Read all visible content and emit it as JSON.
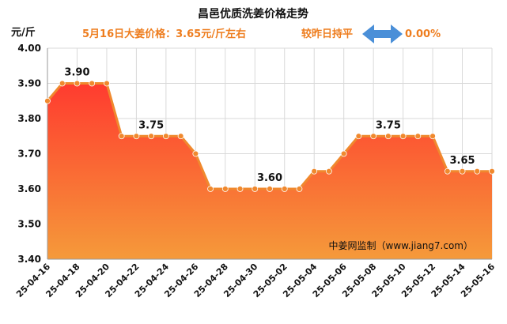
{
  "chart_data": {
    "type": "area",
    "title": "昌邑优质洗姜价格走势",
    "subtitle": "5月16日大姜价格：3.65元/斤左右",
    "change_label": "较昨日持平",
    "change_value": "0.00%",
    "ylabel": "元/斤",
    "watermark": "中姜网监制（www.jiang7.com）",
    "ylim": [
      3.4,
      4.0
    ],
    "yticks": [
      "3.40",
      "3.50",
      "3.60",
      "3.70",
      "3.80",
      "3.90",
      "4.00"
    ],
    "x": [
      "25-04-16",
      "25-04-17",
      "25-04-18",
      "25-04-19",
      "25-04-20",
      "25-04-21",
      "25-04-22",
      "25-04-23",
      "25-04-24",
      "25-04-25",
      "25-04-26",
      "25-04-27",
      "25-04-28",
      "25-04-29",
      "25-04-30",
      "25-05-01",
      "25-05-02",
      "25-05-03",
      "25-05-04",
      "25-05-05",
      "25-05-06",
      "25-05-07",
      "25-05-08",
      "25-05-09",
      "25-05-10",
      "25-05-11",
      "25-05-12",
      "25-05-13",
      "25-05-14",
      "25-05-15",
      "25-05-16"
    ],
    "xtick_labels": [
      "25-04-16",
      "25-04-18",
      "25-04-20",
      "25-04-22",
      "25-04-24",
      "25-04-26",
      "25-04-28",
      "25-04-30",
      "25-05-02",
      "25-05-04",
      "25-05-06",
      "25-05-08",
      "25-05-10",
      "25-05-12",
      "25-05-14",
      "25-05-16"
    ],
    "values": [
      3.85,
      3.9,
      3.9,
      3.9,
      3.9,
      3.75,
      3.75,
      3.75,
      3.75,
      3.75,
      3.7,
      3.6,
      3.6,
      3.6,
      3.6,
      3.6,
      3.6,
      3.6,
      3.65,
      3.65,
      3.7,
      3.75,
      3.75,
      3.75,
      3.75,
      3.75,
      3.75,
      3.65,
      3.65,
      3.65,
      3.65
    ],
    "data_labels": [
      {
        "x": "25-04-18",
        "text": "3.90"
      },
      {
        "x": "25-04-23",
        "text": "3.75"
      },
      {
        "x": "25-05-01",
        "text": "3.60"
      },
      {
        "x": "25-05-09",
        "text": "3.75"
      },
      {
        "x": "25-05-14",
        "text": "3.65"
      }
    ],
    "grid": true,
    "colors": {
      "line": "#f0892e",
      "fill_top": "#ff3b2f",
      "fill_bottom": "#f59a3a",
      "subtitle": "#ee7d1e",
      "arrow": "#4a8fd8",
      "grid": "#d9d9d9",
      "axis": "#999999"
    }
  }
}
